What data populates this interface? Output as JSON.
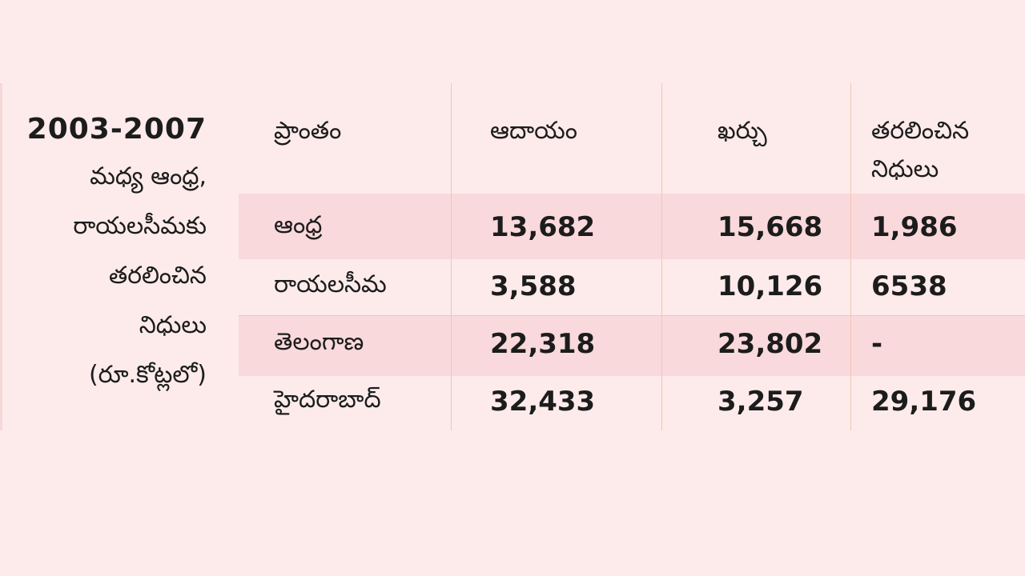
{
  "side_panel": {
    "year": "2003-2007",
    "lines": [
      "మధ్య ఆంధ్ర,",
      "రాయలసీమకు",
      "తరలించిన",
      "నిధులు",
      "(రూ.కోట్లలో)"
    ]
  },
  "colors": {
    "background": "#fdebeb",
    "band": "#f9d9dc",
    "rule": "#efc7b0"
  },
  "chart_data": {
    "type": "table",
    "columns": [
      "ప్రాంతం",
      "ఆదాయం",
      "ఖర్చు",
      "తరలించిన నిధులు"
    ],
    "rows": [
      [
        "ఆంధ్ర",
        "13,682",
        "15,668",
        "1,986"
      ],
      [
        "రాయలసీమ",
        "3,588",
        "10,126",
        "6538"
      ],
      [
        "తెలంగాణ",
        "22,318",
        "23,802",
        "-"
      ],
      [
        "హైదరాబాద్",
        "32,433",
        "3,257",
        "29,176"
      ]
    ]
  }
}
